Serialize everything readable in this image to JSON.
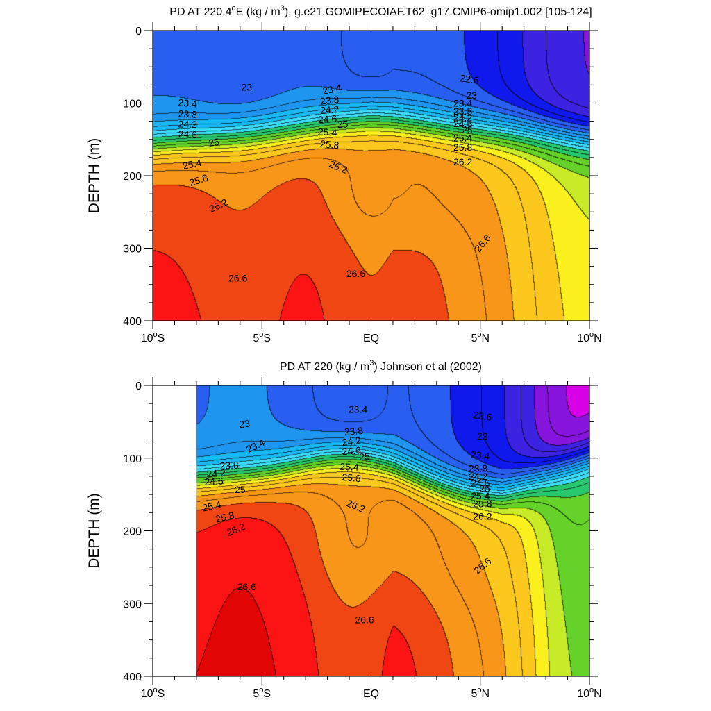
{
  "chart_data": [
    {
      "id": "top",
      "type": "contour",
      "title": "PD AT 220.4°E (kg / m³), g.e21.GOMIPECOIAF.T62_g17.CMIP6-omip1.002 [105-124]",
      "title_parts": {
        "pre": "PD AT 220.4",
        "deg": "o",
        "mid": "E (kg / m",
        "sup": "3",
        "post": "), g.e21.GOMIPECOIAF.T62_g17.CMIP6-omip1.002 [105-124]"
      },
      "xlabel": "",
      "ylabel": "DEPTH (m)",
      "xlim": [
        -10,
        10
      ],
      "ylim": [
        400,
        0
      ],
      "data_xlim": [
        -10,
        10
      ],
      "xticks": [
        {
          "value": -10,
          "num": "10",
          "hemi": "S"
        },
        {
          "value": -5,
          "num": "5",
          "hemi": "S"
        },
        {
          "value": 0,
          "num": "EQ",
          "hemi": ""
        },
        {
          "value": 5,
          "num": "5",
          "hemi": "N"
        },
        {
          "value": 10,
          "num": "10",
          "hemi": "N"
        }
      ],
      "yticks": [
        0,
        100,
        200,
        300,
        400
      ],
      "grid": false,
      "contour_labels": [
        {
          "text": "23",
          "lat": -5.7,
          "depth": 78,
          "angle": 0
        },
        {
          "text": "23.4",
          "lat": -8.4,
          "depth": 100,
          "angle": 5
        },
        {
          "text": "23.8",
          "lat": -8.4,
          "depth": 115,
          "angle": 3
        },
        {
          "text": "24.2",
          "lat": -8.4,
          "depth": 129,
          "angle": 2
        },
        {
          "text": "24.6",
          "lat": -8.4,
          "depth": 143,
          "angle": 3
        },
        {
          "text": "25",
          "lat": -7.2,
          "depth": 154,
          "angle": -8
        },
        {
          "text": "25.4",
          "lat": -8.2,
          "depth": 184,
          "angle": -12
        },
        {
          "text": "25.8",
          "lat": -7.9,
          "depth": 206,
          "angle": -18
        },
        {
          "text": "26.2",
          "lat": -7.0,
          "depth": 241,
          "angle": -25
        },
        {
          "text": "26.6",
          "lat": -6.1,
          "depth": 341,
          "angle": 0
        },
        {
          "text": "23.4",
          "lat": -1.8,
          "depth": 81,
          "angle": -10
        },
        {
          "text": "23.8",
          "lat": -1.9,
          "depth": 96,
          "angle": -6
        },
        {
          "text": "24.2",
          "lat": -1.9,
          "depth": 109,
          "angle": -4
        },
        {
          "text": "24.6",
          "lat": -2.0,
          "depth": 122,
          "angle": -3
        },
        {
          "text": "25",
          "lat": -1.3,
          "depth": 129,
          "angle": -2
        },
        {
          "text": "25.4",
          "lat": -2.0,
          "depth": 140,
          "angle": 4
        },
        {
          "text": "25.8",
          "lat": -1.9,
          "depth": 157,
          "angle": 6
        },
        {
          "text": "26.2",
          "lat": -1.5,
          "depth": 188,
          "angle": 22
        },
        {
          "text": "26.6",
          "lat": -0.7,
          "depth": 335,
          "angle": 0
        },
        {
          "text": "22.6",
          "lat": 4.5,
          "depth": 67,
          "angle": 8
        },
        {
          "text": "23",
          "lat": 4.6,
          "depth": 89,
          "angle": 0
        },
        {
          "text": "23.4",
          "lat": 4.2,
          "depth": 100,
          "angle": 0
        },
        {
          "text": "23.8",
          "lat": 4.2,
          "depth": 111,
          "angle": 0
        },
        {
          "text": "24.2",
          "lat": 4.2,
          "depth": 120,
          "angle": 0
        },
        {
          "text": "24.6",
          "lat": 4.2,
          "depth": 128,
          "angle": 0
        },
        {
          "text": "25",
          "lat": 4.4,
          "depth": 137,
          "angle": 0
        },
        {
          "text": "25.4",
          "lat": 4.2,
          "depth": 148,
          "angle": 0
        },
        {
          "text": "25.8",
          "lat": 4.2,
          "depth": 161,
          "angle": 0
        },
        {
          "text": "26.2",
          "lat": 4.2,
          "depth": 181,
          "angle": 0
        },
        {
          "text": "26.6",
          "lat": 5.1,
          "depth": 293,
          "angle": -50
        }
      ]
    },
    {
      "id": "bottom",
      "type": "contour",
      "title": "PD AT 220 (kg / m³) Johnson et al (2002)",
      "title_parts": {
        "pre": "PD AT 220 (kg / m",
        "deg": "",
        "mid": "",
        "sup": "3",
        "post": ") Johnson et al (2002)"
      },
      "xlabel": "",
      "ylabel": "DEPTH (m)",
      "xlim": [
        -10,
        10
      ],
      "ylim": [
        400,
        0
      ],
      "data_xlim": [
        -8,
        10
      ],
      "xticks": [
        {
          "value": -10,
          "num": "10",
          "hemi": "S"
        },
        {
          "value": -5,
          "num": "5",
          "hemi": "S"
        },
        {
          "value": 0,
          "num": "EQ",
          "hemi": ""
        },
        {
          "value": 5,
          "num": "5",
          "hemi": "N"
        },
        {
          "value": 10,
          "num": "10",
          "hemi": "N"
        }
      ],
      "yticks": [
        0,
        100,
        200,
        300,
        400
      ],
      "grid": false,
      "contour_labels": [
        {
          "text": "23",
          "lat": -5.8,
          "depth": 53,
          "angle": -8
        },
        {
          "text": "23.4",
          "lat": -5.3,
          "depth": 83,
          "angle": -25
        },
        {
          "text": "23.8",
          "lat": -6.5,
          "depth": 110,
          "angle": -3
        },
        {
          "text": "24.2",
          "lat": -7.1,
          "depth": 121,
          "angle": -5
        },
        {
          "text": "24.6",
          "lat": -7.2,
          "depth": 132,
          "angle": -3
        },
        {
          "text": "25",
          "lat": -6.0,
          "depth": 143,
          "angle": 0
        },
        {
          "text": "25.4",
          "lat": -7.3,
          "depth": 166,
          "angle": -12
        },
        {
          "text": "25.8",
          "lat": -6.7,
          "depth": 181,
          "angle": -14
        },
        {
          "text": "26.2",
          "lat": -6.2,
          "depth": 198,
          "angle": -22
        },
        {
          "text": "26.6",
          "lat": -5.7,
          "depth": 277,
          "angle": 0
        },
        {
          "text": "23.4",
          "lat": -0.6,
          "depth": 33,
          "angle": 0
        },
        {
          "text": "23.8",
          "lat": -0.8,
          "depth": 63,
          "angle": -5
        },
        {
          "text": "24.2",
          "lat": -0.9,
          "depth": 77,
          "angle": -6
        },
        {
          "text": "24.6",
          "lat": -0.9,
          "depth": 90,
          "angle": -5
        },
        {
          "text": "25",
          "lat": -0.3,
          "depth": 98,
          "angle": -4
        },
        {
          "text": "25.4",
          "lat": -1.0,
          "depth": 112,
          "angle": 3
        },
        {
          "text": "25.8",
          "lat": -0.9,
          "depth": 127,
          "angle": 5
        },
        {
          "text": "26.2",
          "lat": -0.7,
          "depth": 166,
          "angle": 22
        },
        {
          "text": "26.6",
          "lat": -0.3,
          "depth": 322,
          "angle": 0
        },
        {
          "text": "22.6",
          "lat": 5.1,
          "depth": 42,
          "angle": 8
        },
        {
          "text": "23",
          "lat": 5.1,
          "depth": 70,
          "angle": 4
        },
        {
          "text": "23.4",
          "lat": 5.0,
          "depth": 96,
          "angle": 5
        },
        {
          "text": "23.8",
          "lat": 4.9,
          "depth": 114,
          "angle": 0
        },
        {
          "text": "24.2",
          "lat": 4.9,
          "depth": 125,
          "angle": 0
        },
        {
          "text": "24.6",
          "lat": 5.0,
          "depth": 134,
          "angle": 0
        },
        {
          "text": "25",
          "lat": 5.2,
          "depth": 142,
          "angle": 0
        },
        {
          "text": "25.4",
          "lat": 5.0,
          "depth": 152,
          "angle": 0
        },
        {
          "text": "25.8",
          "lat": 5.1,
          "depth": 163,
          "angle": 0
        },
        {
          "text": "26.2",
          "lat": 5.1,
          "depth": 180,
          "angle": 0
        },
        {
          "text": "26.6",
          "lat": 5.1,
          "depth": 248,
          "angle": -40
        }
      ]
    }
  ]
}
